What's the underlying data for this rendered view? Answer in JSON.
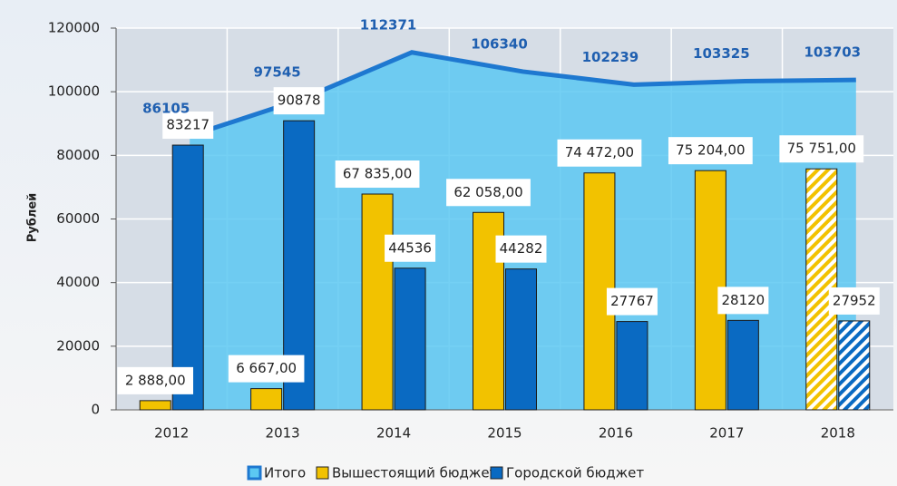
{
  "chart_data": {
    "type": "bar",
    "y_label": "Рублей",
    "categories": [
      "2012",
      "2013",
      "2014",
      "2015",
      "2016",
      "2017",
      "2018"
    ],
    "series": [
      {
        "name": "Итого",
        "type": "area",
        "color": "#1e78d0",
        "values": [
          86105,
          97545,
          112371,
          106340,
          102239,
          103325,
          103703
        ]
      },
      {
        "name": "Вышестоящий бюджет",
        "color": "#f2c200",
        "values": [
          2888,
          6667,
          67835,
          62058,
          74472,
          75204,
          75751
        ],
        "value_labels": [
          "2 888,00",
          "6 667,00",
          "67 835,00",
          "62 058,00",
          "74 472,00",
          "75 204,00",
          "75 751,00"
        ]
      },
      {
        "name": "Городской бюджет",
        "color": "#0a6ac2",
        "values": [
          83217,
          90878,
          44536,
          44282,
          27767,
          28120,
          27952
        ]
      }
    ],
    "ylim": [
      0,
      120000
    ],
    "yticks": [
      0,
      20000,
      40000,
      60000,
      80000,
      100000,
      120000
    ],
    "grid": true
  }
}
